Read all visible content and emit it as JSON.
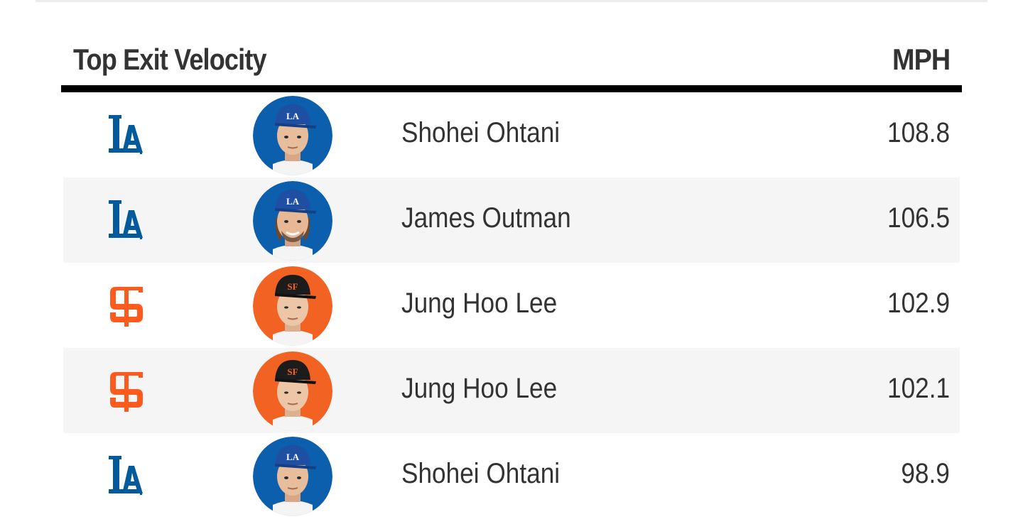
{
  "widget": {
    "title": "Top Exit Velocity",
    "unit_label": "MPH"
  },
  "colors": {
    "dodgers_blue": "#005A9C",
    "giants_orange": "#FD5A1E",
    "alt_row_bg": "#f5f5f5",
    "text": "#333333"
  },
  "rows": [
    {
      "team_icon": "dodgers-logo-icon",
      "team_color": "#005A9C",
      "avatar_icon": "player-headshot-icon",
      "player": "Shohei Ohtani",
      "mph": "108.8"
    },
    {
      "team_icon": "dodgers-logo-icon",
      "team_color": "#005A9C",
      "avatar_icon": "player-headshot-icon",
      "player": "James Outman",
      "mph": "106.5"
    },
    {
      "team_icon": "giants-logo-icon",
      "team_color": "#FD5A1E",
      "avatar_icon": "player-headshot-icon",
      "player": "Jung Hoo Lee",
      "mph": "102.9"
    },
    {
      "team_icon": "giants-logo-icon",
      "team_color": "#FD5A1E",
      "avatar_icon": "player-headshot-icon",
      "player": "Jung Hoo Lee",
      "mph": "102.1"
    },
    {
      "team_icon": "dodgers-logo-icon",
      "team_color": "#005A9C",
      "avatar_icon": "player-headshot-icon",
      "player": "Shohei Ohtani",
      "mph": "98.9"
    }
  ]
}
